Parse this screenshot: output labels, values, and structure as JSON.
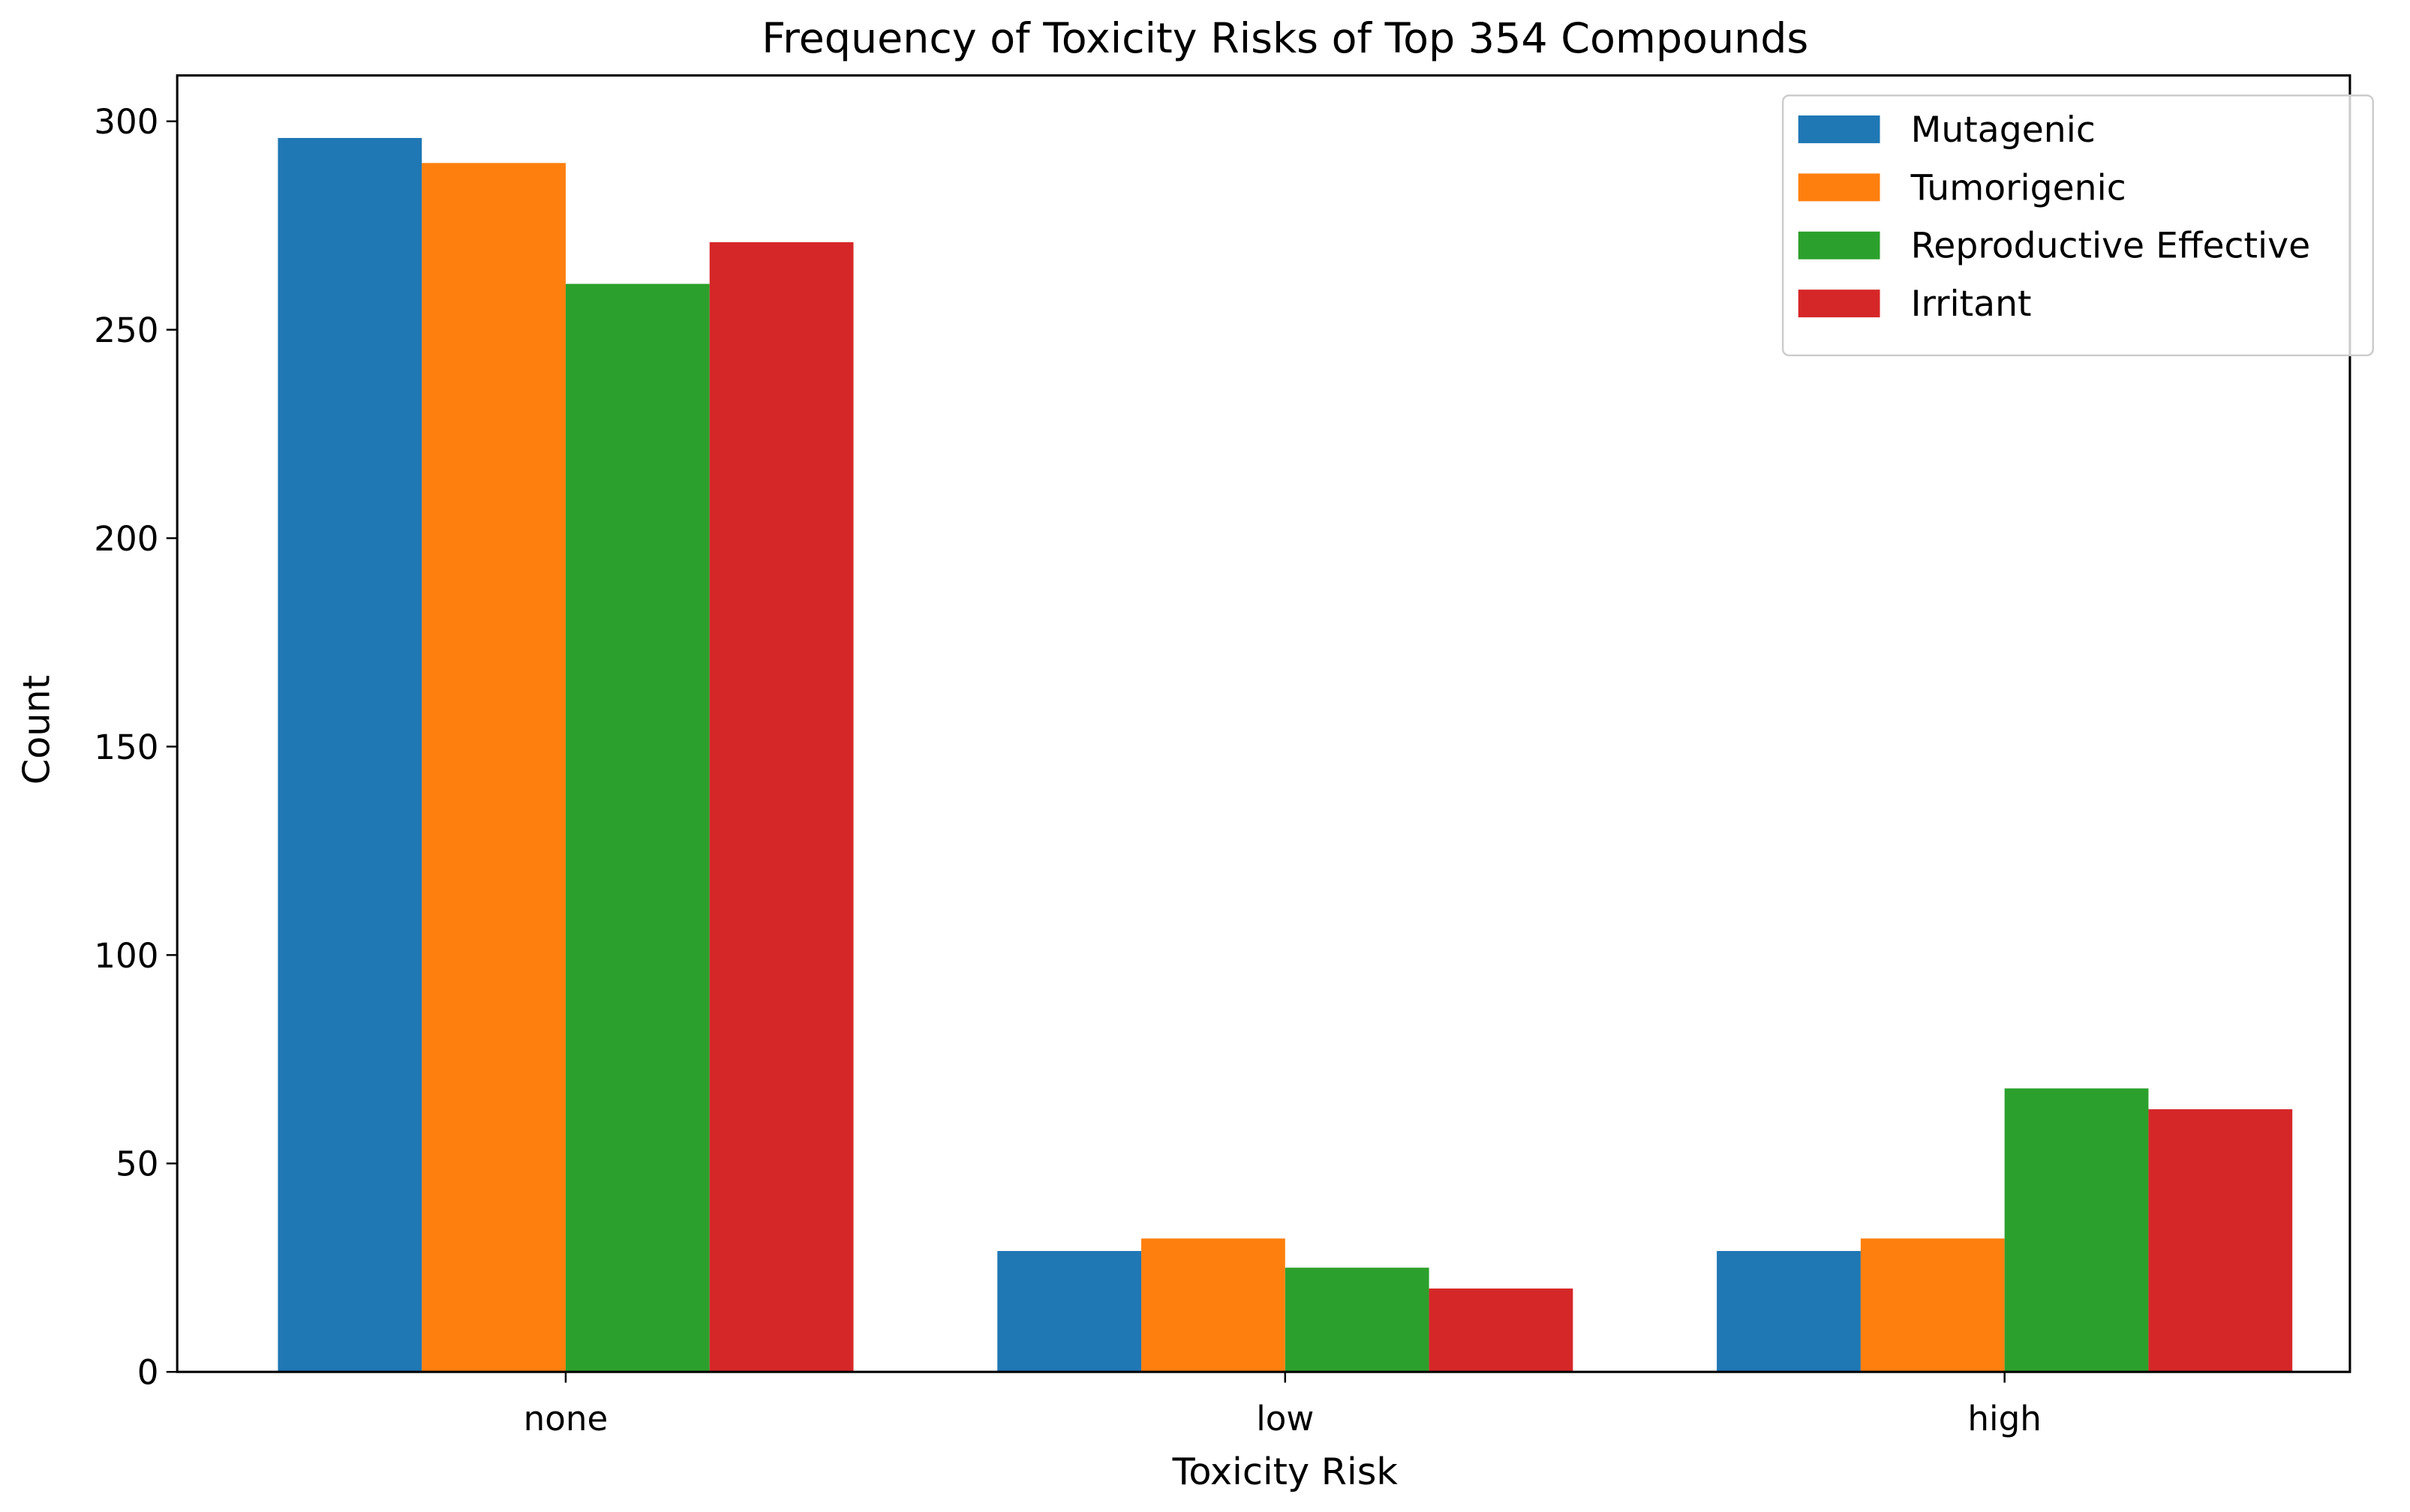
{
  "chart_data": {
    "type": "bar",
    "title": "Frequency of Toxicity Risks of Top 354 Compounds",
    "x_label": "Toxicity Risk",
    "y_label": "Count",
    "categories": [
      "none",
      "low",
      "high"
    ],
    "series": [
      {
        "name": "Mutagenic",
        "color": "#1f77b4",
        "values": [
          296,
          29,
          29
        ]
      },
      {
        "name": "Tumorigenic",
        "color": "#ff7f0e",
        "values": [
          290,
          32,
          32
        ]
      },
      {
        "name": "Reproductive Effective",
        "color": "#2ca02c",
        "values": [
          261,
          25,
          68
        ]
      },
      {
        "name": "Irritant",
        "color": "#d62728",
        "values": [
          271,
          20,
          63
        ]
      }
    ],
    "ylim": [
      0,
      311
    ],
    "yticks": [
      0,
      50,
      100,
      150,
      200,
      250,
      300
    ],
    "legend": "upper right",
    "grid": false
  }
}
